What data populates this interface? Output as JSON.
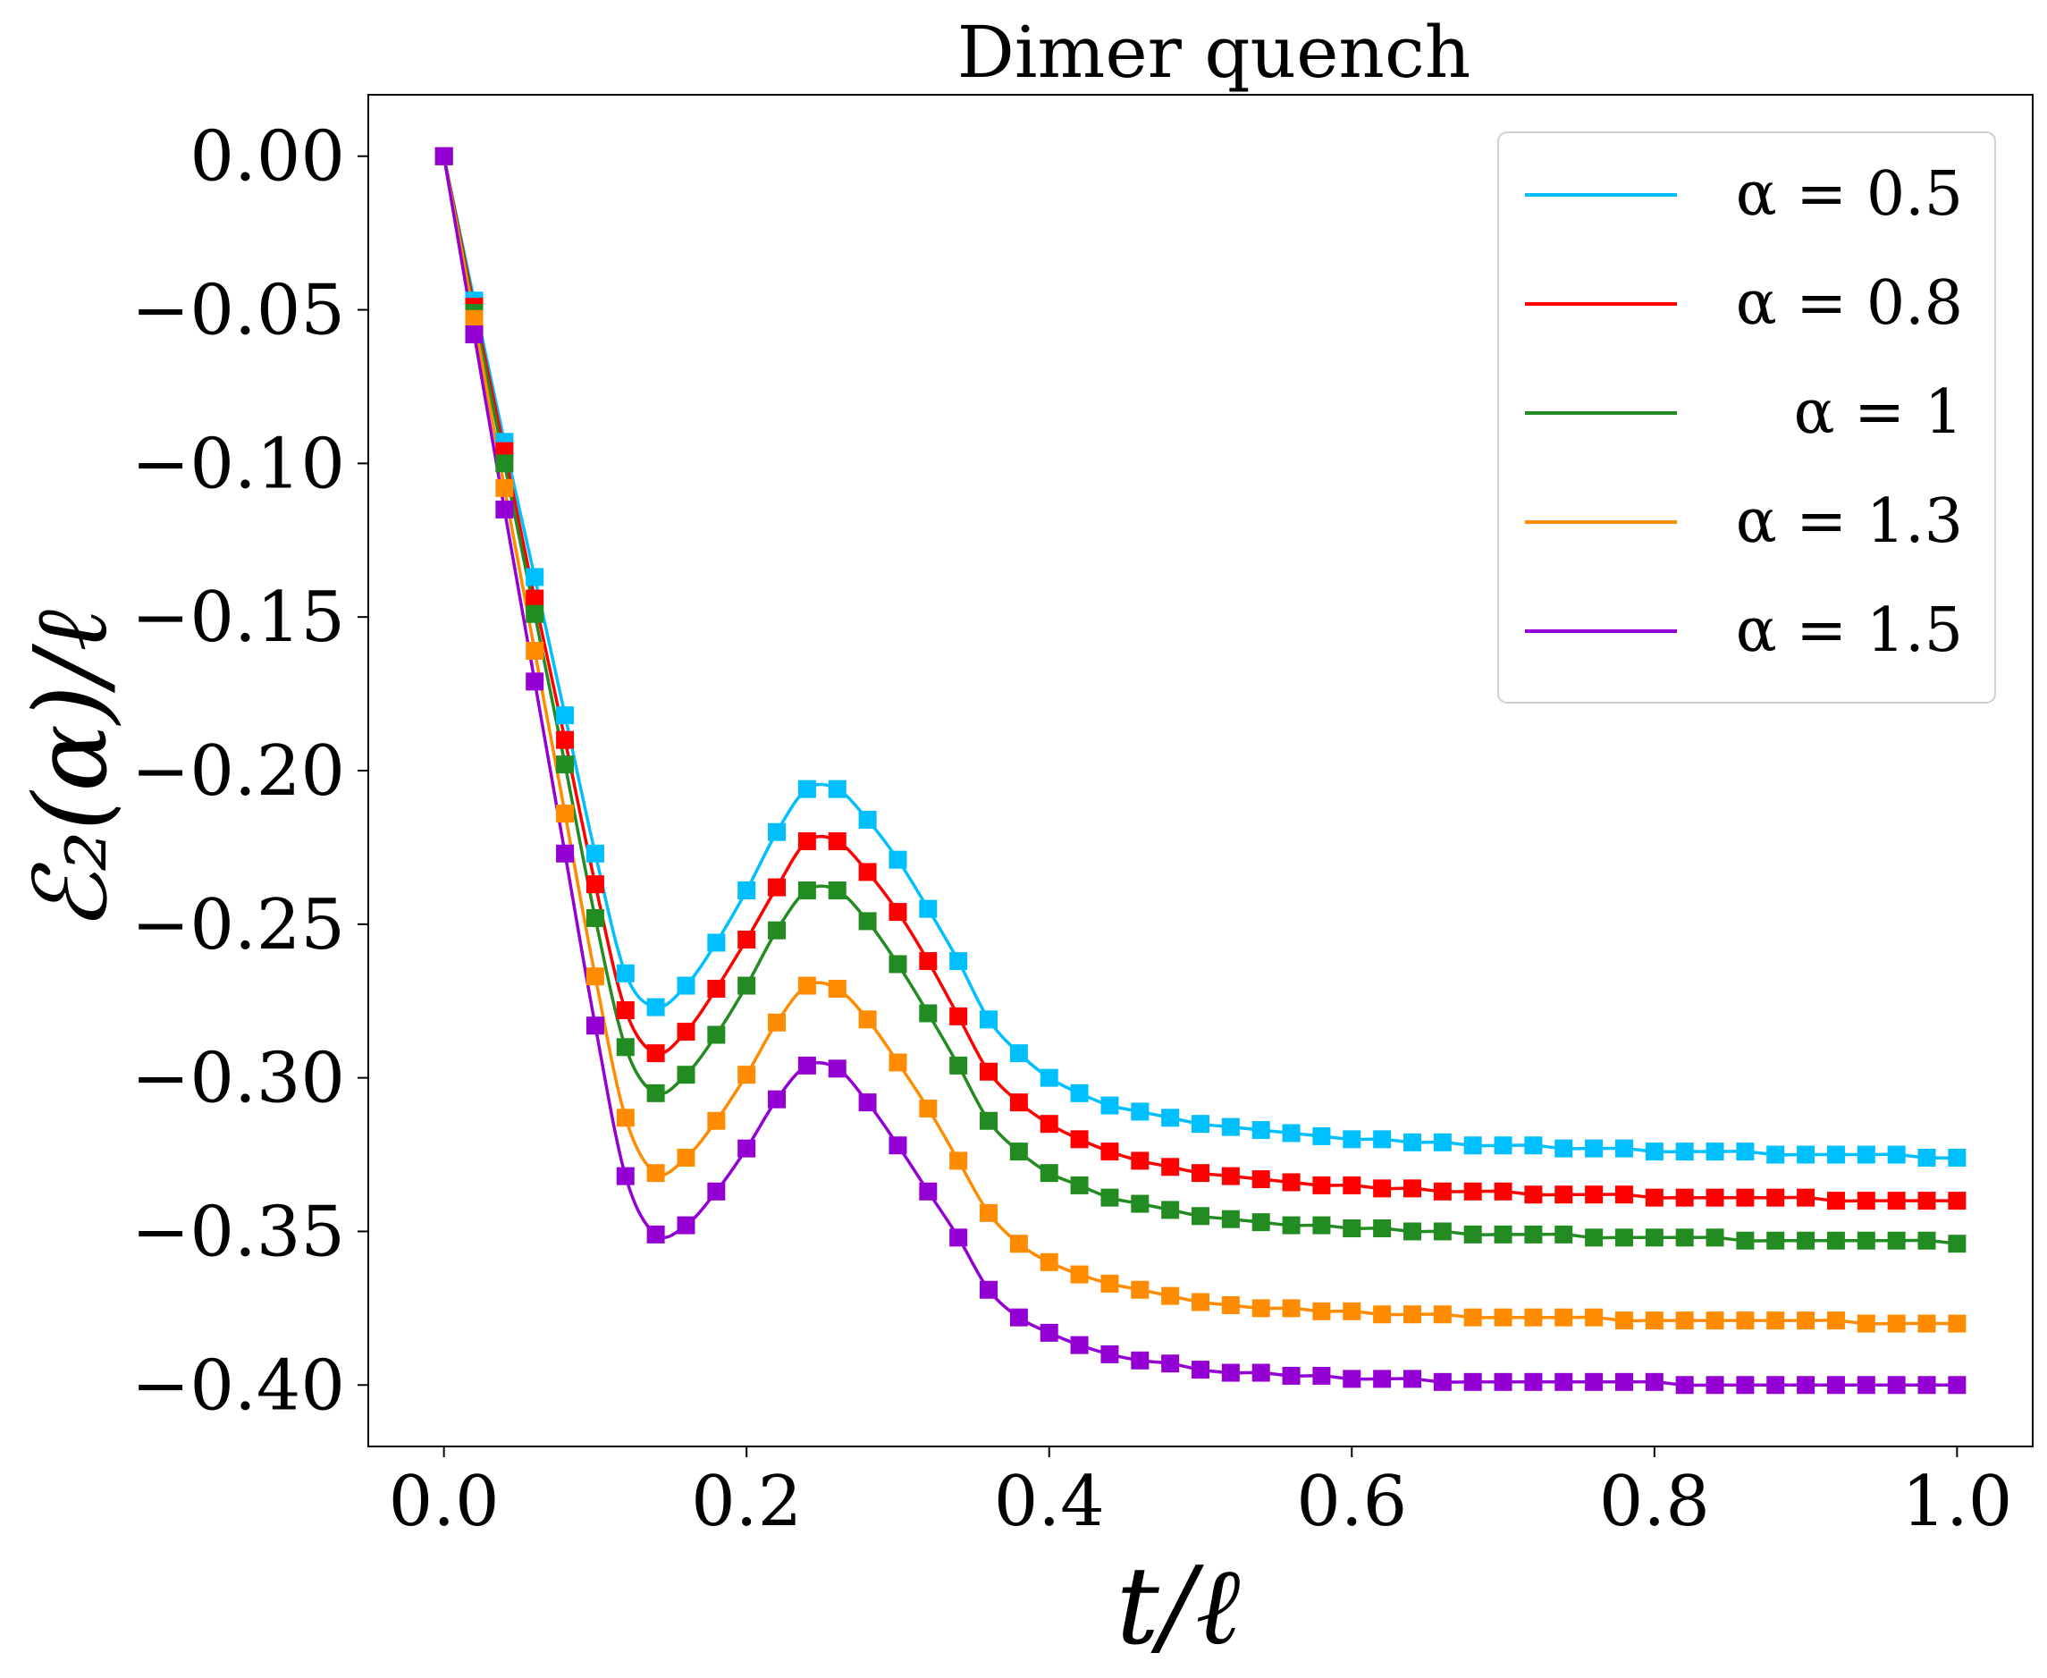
{
  "chart_data": {
    "type": "line",
    "title": "Dimer quench",
    "xlabel": "t/ℓ",
    "ylabel": "ℰ₂(α)/ℓ",
    "xlim": [
      -0.05,
      1.05
    ],
    "ylim": [
      -0.42,
      0.02
    ],
    "xticks": [
      0.0,
      0.2,
      0.4,
      0.6,
      0.8,
      1.0
    ],
    "xtick_labels": [
      "0.0",
      "0.2",
      "0.4",
      "0.6",
      "0.8",
      "1.0"
    ],
    "yticks": [
      0.0,
      -0.05,
      -0.1,
      -0.15,
      -0.2,
      -0.25,
      -0.3,
      -0.35,
      -0.4
    ],
    "ytick_labels": [
      "0.00",
      "−0.05",
      "−0.10",
      "−0.15",
      "−0.20",
      "−0.25",
      "−0.30",
      "−0.35",
      "−0.40"
    ],
    "grid": false,
    "legend_position": "top-right",
    "markers": "square",
    "series": [
      {
        "name": "α = 0.5",
        "color": "#00bfff",
        "x": [
          0.0,
          0.02,
          0.04,
          0.06,
          0.08,
          0.1,
          0.12,
          0.14,
          0.16,
          0.18,
          0.2,
          0.22,
          0.24,
          0.26,
          0.28,
          0.3,
          0.32,
          0.34,
          0.36,
          0.38,
          0.4,
          0.42,
          0.44,
          0.46,
          0.48,
          0.5,
          0.52,
          0.54,
          0.56,
          0.58,
          0.6,
          0.62,
          0.64,
          0.66,
          0.68,
          0.7,
          0.72,
          0.74,
          0.76,
          0.78,
          0.8,
          0.82,
          0.84,
          0.86,
          0.88,
          0.9,
          0.92,
          0.94,
          0.96,
          0.98,
          1.0
        ],
        "values": [
          0.0,
          -0.047,
          -0.093,
          -0.137,
          -0.182,
          -0.227,
          -0.266,
          -0.277,
          -0.27,
          -0.256,
          -0.239,
          -0.22,
          -0.206,
          -0.206,
          -0.216,
          -0.229,
          -0.245,
          -0.262,
          -0.281,
          -0.292,
          -0.3,
          -0.305,
          -0.309,
          -0.311,
          -0.313,
          -0.315,
          -0.316,
          -0.317,
          -0.318,
          -0.319,
          -0.32,
          -0.32,
          -0.321,
          -0.321,
          -0.322,
          -0.322,
          -0.322,
          -0.323,
          -0.323,
          -0.323,
          -0.324,
          -0.324,
          -0.324,
          -0.324,
          -0.325,
          -0.325,
          -0.325,
          -0.325,
          -0.325,
          -0.326,
          -0.326
        ]
      },
      {
        "name": "α = 0.8",
        "color": "#ff0000",
        "x": [
          0.0,
          0.02,
          0.04,
          0.06,
          0.08,
          0.1,
          0.12,
          0.14,
          0.16,
          0.18,
          0.2,
          0.22,
          0.24,
          0.26,
          0.28,
          0.3,
          0.32,
          0.34,
          0.36,
          0.38,
          0.4,
          0.42,
          0.44,
          0.46,
          0.48,
          0.5,
          0.52,
          0.54,
          0.56,
          0.58,
          0.6,
          0.62,
          0.64,
          0.66,
          0.68,
          0.7,
          0.72,
          0.74,
          0.76,
          0.78,
          0.8,
          0.82,
          0.84,
          0.86,
          0.88,
          0.9,
          0.92,
          0.94,
          0.96,
          0.98,
          1.0
        ],
        "values": [
          0.0,
          -0.049,
          -0.096,
          -0.144,
          -0.19,
          -0.237,
          -0.278,
          -0.292,
          -0.285,
          -0.271,
          -0.255,
          -0.238,
          -0.223,
          -0.223,
          -0.233,
          -0.246,
          -0.262,
          -0.28,
          -0.298,
          -0.308,
          -0.315,
          -0.32,
          -0.324,
          -0.327,
          -0.329,
          -0.331,
          -0.332,
          -0.333,
          -0.334,
          -0.335,
          -0.335,
          -0.336,
          -0.336,
          -0.337,
          -0.337,
          -0.337,
          -0.338,
          -0.338,
          -0.338,
          -0.338,
          -0.339,
          -0.339,
          -0.339,
          -0.339,
          -0.339,
          -0.339,
          -0.34,
          -0.34,
          -0.34,
          -0.34,
          -0.34
        ]
      },
      {
        "name": "α = 1",
        "color": "#228b22",
        "x": [
          0.0,
          0.02,
          0.04,
          0.06,
          0.08,
          0.1,
          0.12,
          0.14,
          0.16,
          0.18,
          0.2,
          0.22,
          0.24,
          0.26,
          0.28,
          0.3,
          0.32,
          0.34,
          0.36,
          0.38,
          0.4,
          0.42,
          0.44,
          0.46,
          0.48,
          0.5,
          0.52,
          0.54,
          0.56,
          0.58,
          0.6,
          0.62,
          0.64,
          0.66,
          0.68,
          0.7,
          0.72,
          0.74,
          0.76,
          0.78,
          0.8,
          0.82,
          0.84,
          0.86,
          0.88,
          0.9,
          0.92,
          0.94,
          0.96,
          0.98,
          1.0
        ],
        "values": [
          0.0,
          -0.051,
          -0.1,
          -0.149,
          -0.198,
          -0.248,
          -0.29,
          -0.305,
          -0.299,
          -0.286,
          -0.27,
          -0.252,
          -0.239,
          -0.239,
          -0.249,
          -0.263,
          -0.279,
          -0.296,
          -0.314,
          -0.324,
          -0.331,
          -0.335,
          -0.339,
          -0.341,
          -0.343,
          -0.345,
          -0.346,
          -0.347,
          -0.348,
          -0.348,
          -0.349,
          -0.349,
          -0.35,
          -0.35,
          -0.351,
          -0.351,
          -0.351,
          -0.351,
          -0.352,
          -0.352,
          -0.352,
          -0.352,
          -0.352,
          -0.353,
          -0.353,
          -0.353,
          -0.353,
          -0.353,
          -0.353,
          -0.353,
          -0.354
        ]
      },
      {
        "name": "α = 1.3",
        "color": "#ff8c00",
        "x": [
          0.0,
          0.02,
          0.04,
          0.06,
          0.08,
          0.1,
          0.12,
          0.14,
          0.16,
          0.18,
          0.2,
          0.22,
          0.24,
          0.26,
          0.28,
          0.3,
          0.32,
          0.34,
          0.36,
          0.38,
          0.4,
          0.42,
          0.44,
          0.46,
          0.48,
          0.5,
          0.52,
          0.54,
          0.56,
          0.58,
          0.6,
          0.62,
          0.64,
          0.66,
          0.68,
          0.7,
          0.72,
          0.74,
          0.76,
          0.78,
          0.8,
          0.82,
          0.84,
          0.86,
          0.88,
          0.9,
          0.92,
          0.94,
          0.96,
          0.98,
          1.0
        ],
        "values": [
          0.0,
          -0.053,
          -0.108,
          -0.161,
          -0.214,
          -0.267,
          -0.313,
          -0.331,
          -0.326,
          -0.314,
          -0.299,
          -0.282,
          -0.27,
          -0.271,
          -0.281,
          -0.295,
          -0.31,
          -0.327,
          -0.344,
          -0.354,
          -0.36,
          -0.364,
          -0.367,
          -0.369,
          -0.371,
          -0.373,
          -0.374,
          -0.375,
          -0.375,
          -0.376,
          -0.376,
          -0.377,
          -0.377,
          -0.377,
          -0.378,
          -0.378,
          -0.378,
          -0.378,
          -0.378,
          -0.379,
          -0.379,
          -0.379,
          -0.379,
          -0.379,
          -0.379,
          -0.379,
          -0.379,
          -0.38,
          -0.38,
          -0.38,
          -0.38
        ]
      },
      {
        "name": "α = 1.5",
        "color": "#9400d3",
        "x": [
          0.0,
          0.02,
          0.04,
          0.06,
          0.08,
          0.1,
          0.12,
          0.14,
          0.16,
          0.18,
          0.2,
          0.22,
          0.24,
          0.26,
          0.28,
          0.3,
          0.32,
          0.34,
          0.36,
          0.38,
          0.4,
          0.42,
          0.44,
          0.46,
          0.48,
          0.5,
          0.52,
          0.54,
          0.56,
          0.58,
          0.6,
          0.62,
          0.64,
          0.66,
          0.68,
          0.7,
          0.72,
          0.74,
          0.76,
          0.78,
          0.8,
          0.82,
          0.84,
          0.86,
          0.88,
          0.9,
          0.92,
          0.94,
          0.96,
          0.98,
          1.0
        ],
        "values": [
          0.0,
          -0.058,
          -0.115,
          -0.171,
          -0.227,
          -0.283,
          -0.332,
          -0.351,
          -0.348,
          -0.337,
          -0.323,
          -0.307,
          -0.296,
          -0.297,
          -0.308,
          -0.322,
          -0.337,
          -0.352,
          -0.369,
          -0.378,
          -0.383,
          -0.387,
          -0.39,
          -0.392,
          -0.393,
          -0.395,
          -0.396,
          -0.396,
          -0.397,
          -0.397,
          -0.398,
          -0.398,
          -0.398,
          -0.399,
          -0.399,
          -0.399,
          -0.399,
          -0.399,
          -0.399,
          -0.399,
          -0.399,
          -0.4,
          -0.4,
          -0.4,
          -0.4,
          -0.4,
          -0.4,
          -0.4,
          -0.4,
          -0.4,
          -0.4
        ]
      }
    ]
  }
}
